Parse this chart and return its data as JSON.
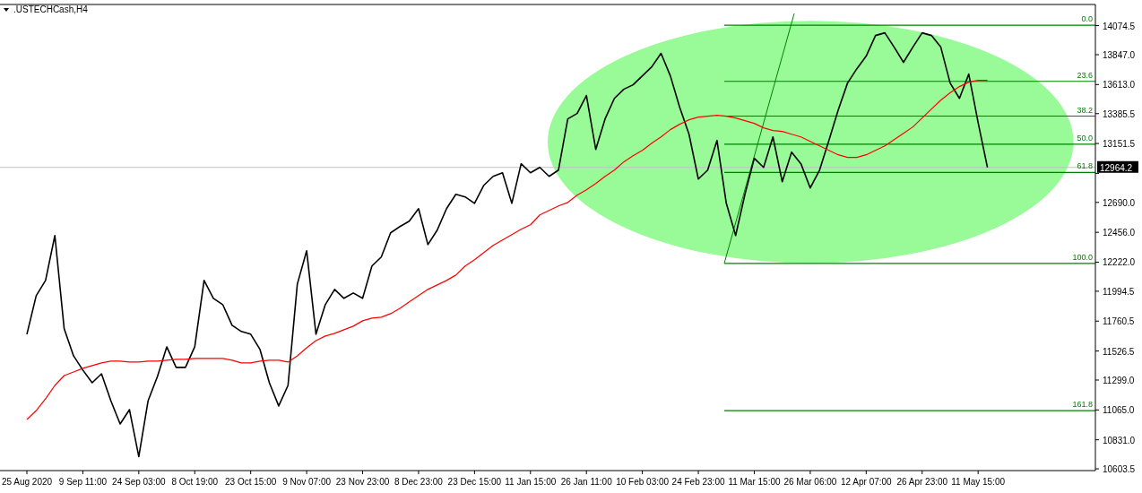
{
  "chart_data": {
    "type": "line",
    "title": ".USTECHCash,H4",
    "categories": [
      "25 Aug 2020",
      null,
      null,
      null,
      null,
      null,
      "9 Sep 11:00",
      null,
      null,
      null,
      null,
      null,
      "24 Sep 03:00",
      null,
      null,
      null,
      null,
      null,
      "8 Oct 19:00",
      null,
      null,
      null,
      null,
      null,
      "23 Oct 15:00",
      null,
      null,
      null,
      null,
      null,
      "9 Nov 07:00",
      null,
      null,
      null,
      null,
      null,
      "23 Nov 23:00",
      null,
      null,
      null,
      null,
      null,
      "8 Dec 23:00",
      null,
      null,
      null,
      null,
      null,
      "23 Dec 15:00",
      null,
      null,
      null,
      null,
      null,
      "11 Jan 15:00",
      null,
      null,
      null,
      null,
      null,
      "26 Jan 11:00",
      null,
      null,
      null,
      null,
      null,
      "10 Feb 03:00",
      null,
      null,
      null,
      null,
      null,
      "24 Feb 23:00",
      null,
      null,
      null,
      null,
      null,
      "11 Mar 15:00",
      null,
      null,
      null,
      null,
      null,
      "26 Mar 06:00",
      null,
      null,
      null,
      null,
      null,
      "12 Apr 07:00",
      null,
      null,
      null,
      null,
      null,
      "26 Apr 23:00",
      null,
      null,
      null,
      null,
      null,
      "11 May 15:00",
      null,
      null,
      null,
      null,
      null,
      null,
      null,
      null,
      null,
      null,
      null,
      null
    ],
    "series": [
      {
        "color": "#000000",
        "values": [
          11658,
          11960,
          12079,
          12431,
          11700,
          11489,
          11377,
          11278,
          11348,
          11138,
          10955,
          11067,
          10700,
          11138,
          11327,
          11559,
          11398,
          11398,
          11559,
          12079,
          11939,
          11890,
          11728,
          11679,
          11658,
          11538,
          11278,
          11096,
          11257,
          12051,
          12311,
          11658,
          11890,
          12009,
          11939,
          11981,
          11939,
          12192,
          12262,
          12452,
          12501,
          12543,
          12641,
          12360,
          12473,
          12641,
          12754,
          12733,
          12683,
          12824,
          12894,
          12922,
          12683,
          12993,
          12922,
          12964,
          12894,
          12943,
          13344,
          13386,
          13527,
          13105,
          13344,
          13505,
          13576,
          13611,
          13681,
          13751,
          13857,
          13681,
          13435,
          13224,
          12873,
          12943,
          13175,
          12683,
          12431,
          12754,
          13035,
          12964,
          13203,
          12852,
          13084,
          12993,
          12803,
          12943,
          13175,
          13414,
          13625,
          13737,
          13836,
          13997,
          14018,
          13906,
          13787,
          13906,
          14018,
          13997,
          13906,
          13625,
          13505,
          13695,
          13316,
          12964.2,
          null,
          null,
          null,
          null,
          null,
          null,
          null,
          null,
          null,
          null,
          null
        ]
      },
      {
        "color": "#ff0000",
        "values": [
          10990,
          11060,
          11152,
          11257,
          11334,
          11362,
          11391,
          11412,
          11433,
          11447,
          11447,
          11440,
          11440,
          11447,
          11447,
          11454,
          11461,
          11461,
          11468,
          11468,
          11468,
          11468,
          11454,
          11433,
          11433,
          11447,
          11454,
          11454,
          11440,
          11489,
          11552,
          11608,
          11644,
          11665,
          11693,
          11721,
          11763,
          11784,
          11791,
          11819,
          11861,
          11911,
          11960,
          12009,
          12044,
          12079,
          12121,
          12192,
          12241,
          12297,
          12353,
          12395,
          12438,
          12480,
          12515,
          12592,
          12627,
          12662,
          12690,
          12747,
          12789,
          12838,
          12894,
          12943,
          13007,
          13056,
          13098,
          13154,
          13203,
          13260,
          13302,
          13337,
          13358,
          13365,
          13372,
          13365,
          13351,
          13330,
          13309,
          13274,
          13253,
          13246,
          13224,
          13203,
          13168,
          13133,
          13098,
          13063,
          13042,
          13042,
          13063,
          13098,
          13133,
          13182,
          13231,
          13281,
          13351,
          13421,
          13491,
          13548,
          13597,
          13632,
          13646,
          13646,
          null,
          null,
          null,
          null,
          null,
          null,
          null,
          null,
          null,
          null,
          null
        ]
      }
    ],
    "ylim": [
      10590,
      14240
    ],
    "yticks": [
      14074.5,
      {
        "value": 13847,
        "label": "13847.0"
      },
      {
        "value": 13613,
        "label": "13613.0"
      },
      13385.5,
      13151.5,
      {
        "value": 12917.5,
        "label": null
      },
      {
        "value": 12690,
        "label": "12690.0"
      },
      {
        "value": 12456,
        "label": "12456.0"
      },
      {
        "value": 12222,
        "label": "12222.0"
      },
      11994.5,
      11760.5,
      11526.5,
      {
        "value": 11299,
        "label": "11299.0"
      },
      {
        "value": 11065,
        "label": "11065.0"
      },
      {
        "value": 10831,
        "label": "10831.0"
      },
      10603.5
    ],
    "ref_lines": [
      {
        "axis": "y",
        "value": 14078,
        "color": "#008000"
      },
      {
        "axis": "y",
        "value": 13638,
        "color": "#008000"
      },
      {
        "axis": "y",
        "value": 13366,
        "color": "#008000"
      },
      {
        "axis": "y",
        "value": 13145.5,
        "color": "#008000"
      },
      {
        "axis": "y",
        "value": 12925,
        "color": "#008000"
      },
      {
        "axis": "y",
        "value": 12213,
        "color": "#008000"
      },
      {
        "axis": "y",
        "value": 11060,
        "color": "#008000"
      },
      {
        "axis": "y",
        "value": 12964.2,
        "label": "12964.2",
        "color": "#c0c0c0"
      }
    ],
    "annotations": [
      {
        "text": "0.0",
        "y": 14078
      },
      {
        "text": "23.6",
        "y": 13638
      },
      {
        "text": "38.2",
        "y": 13366
      },
      {
        "text": "50.0",
        "y": 13145.5
      },
      {
        "text": "61.8",
        "y": 12925
      },
      {
        "text": "100.0",
        "y": 12213
      },
      {
        "text": "161.8",
        "y": 11060
      }
    ],
    "grid": false,
    "marker": "none",
    "line_style": "solid"
  }
}
